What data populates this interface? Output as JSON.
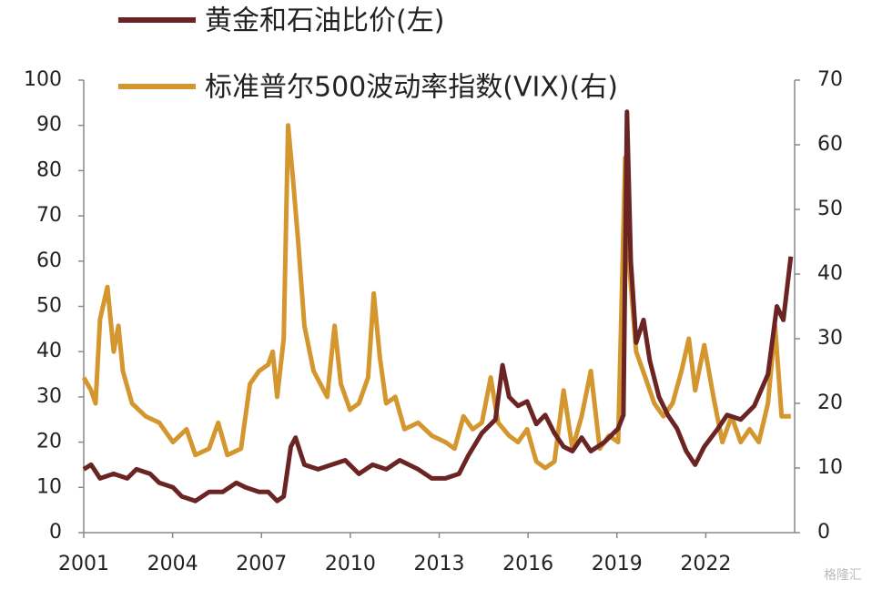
{
  "chart_data": {
    "type": "line",
    "xlim": [
      2001,
      2025
    ],
    "xticks": [
      2001,
      2004,
      2007,
      2010,
      2013,
      2016,
      2019,
      2022
    ],
    "ylim": [
      0,
      100
    ],
    "yticks": [
      0,
      10,
      20,
      30,
      40,
      50,
      60,
      70,
      80,
      90,
      100
    ],
    "y2lim": [
      0,
      70
    ],
    "y2ticks": [
      0,
      10,
      20,
      30,
      40,
      50,
      60,
      70
    ],
    "watermark": "格隆汇",
    "series": [
      {
        "name": "黄金和石油比价(左)",
        "color": "#6b2424",
        "x": [
          2001.0,
          2001.25,
          2001.55,
          2002.01,
          2002.47,
          2002.78,
          2003.24,
          2003.55,
          2004.01,
          2004.31,
          2004.77,
          2005.23,
          2005.69,
          2006.15,
          2006.46,
          2006.92,
          2007.23,
          2007.53,
          2007.75,
          2007.99,
          2008.15,
          2008.45,
          2008.91,
          2009.37,
          2009.83,
          2010.29,
          2010.75,
          2011.21,
          2011.67,
          2012.29,
          2012.75,
          2013.21,
          2013.67,
          2013.98,
          2014.44,
          2014.9,
          2015.14,
          2015.36,
          2015.66,
          2015.97,
          2016.28,
          2016.58,
          2016.89,
          2017.2,
          2017.5,
          2017.81,
          2018.12,
          2018.58,
          2019.04,
          2019.22,
          2019.34,
          2019.47,
          2019.65,
          2019.9,
          2020.11,
          2020.42,
          2020.72,
          2021.03,
          2021.34,
          2021.64,
          2021.95,
          2022.41,
          2022.72,
          2023.18,
          2023.64,
          2024.1,
          2024.4,
          2024.62,
          2024.87
        ],
        "values": [
          14,
          15,
          12,
          13,
          12,
          14,
          13,
          11,
          10,
          8,
          7,
          9,
          9,
          11,
          10,
          9,
          9,
          7,
          8,
          19,
          21,
          15,
          14,
          15,
          16,
          13,
          15,
          14,
          16,
          14,
          12,
          12,
          13,
          17,
          22,
          25,
          37,
          30,
          28,
          29,
          24,
          26,
          22,
          19,
          18,
          21,
          18,
          20,
          23,
          26,
          93,
          60,
          42,
          47,
          38,
          30,
          26,
          23,
          18,
          15,
          19,
          23,
          26,
          25,
          28,
          35,
          50,
          47,
          61
        ]
      },
      {
        "name": "标准普尔500波动率指数(VIX)(右)",
        "color": "#d4962e",
        "axis": "y2",
        "x": [
          2001.0,
          2001.25,
          2001.4,
          2001.55,
          2001.8,
          2002.01,
          2002.17,
          2002.32,
          2002.63,
          2003.09,
          2003.55,
          2004.01,
          2004.47,
          2004.77,
          2005.23,
          2005.54,
          2005.85,
          2006.31,
          2006.61,
          2006.92,
          2007.23,
          2007.38,
          2007.53,
          2007.75,
          2007.9,
          2008.06,
          2008.24,
          2008.45,
          2008.76,
          2009.22,
          2009.47,
          2009.68,
          2009.99,
          2010.29,
          2010.6,
          2010.79,
          2011.0,
          2011.21,
          2011.52,
          2011.83,
          2012.29,
          2012.75,
          2013.21,
          2013.52,
          2013.82,
          2014.13,
          2014.44,
          2014.74,
          2014.99,
          2015.36,
          2015.66,
          2015.97,
          2016.28,
          2016.58,
          2016.89,
          2017.2,
          2017.5,
          2017.81,
          2018.12,
          2018.42,
          2018.73,
          2019.04,
          2019.28,
          2019.44,
          2019.65,
          2019.96,
          2020.26,
          2020.57,
          2020.88,
          2021.18,
          2021.43,
          2021.64,
          2021.95,
          2022.26,
          2022.56,
          2022.87,
          2023.18,
          2023.48,
          2023.79,
          2024.1,
          2024.34,
          2024.56,
          2024.87
        ],
        "values": [
          24,
          22,
          20,
          33,
          38,
          28,
          32,
          25,
          20,
          18,
          17,
          14,
          16,
          12,
          13,
          17,
          12,
          13,
          23,
          25,
          26,
          28,
          21,
          30,
          63,
          55,
          45,
          32,
          25,
          21,
          32,
          23,
          19,
          20,
          24,
          37,
          27,
          20,
          21,
          16,
          17,
          15,
          14,
          13,
          18,
          16,
          17,
          24,
          17,
          15,
          14,
          16,
          11,
          10,
          11,
          22,
          13,
          18,
          25,
          13,
          15,
          14,
          58,
          40,
          28,
          24,
          20,
          18,
          20,
          25,
          30,
          22,
          29,
          21,
          14,
          18,
          14,
          16,
          14,
          20,
          32,
          18,
          18
        ]
      }
    ]
  }
}
